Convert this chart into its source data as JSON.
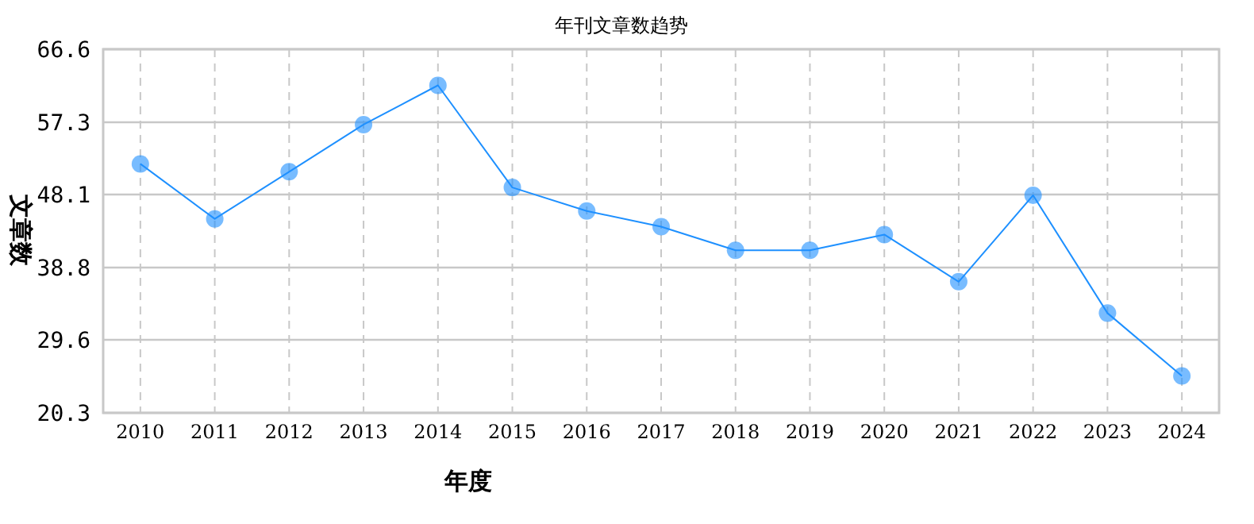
{
  "chart_data": {
    "type": "line",
    "title": "年刊文章数趋势",
    "xlabel": "年度",
    "ylabel": "文章数",
    "categories": [
      "2010",
      "2011",
      "2012",
      "2013",
      "2014",
      "2015",
      "2016",
      "2017",
      "2018",
      "2019",
      "2020",
      "2021",
      "2022",
      "2023",
      "2024"
    ],
    "series": [
      {
        "color": "#1e90ff",
        "values": [
          52,
          45,
          51,
          57,
          62,
          49,
          46,
          44,
          41,
          41,
          43,
          37,
          48,
          33,
          25
        ]
      }
    ],
    "ylim": [
      20.3,
      66.6
    ],
    "yticks": [
      20.3,
      29.6,
      38.8,
      48.1,
      57.3,
      66.6
    ],
    "grid": true,
    "marker": "circle",
    "line_style": "solid"
  }
}
